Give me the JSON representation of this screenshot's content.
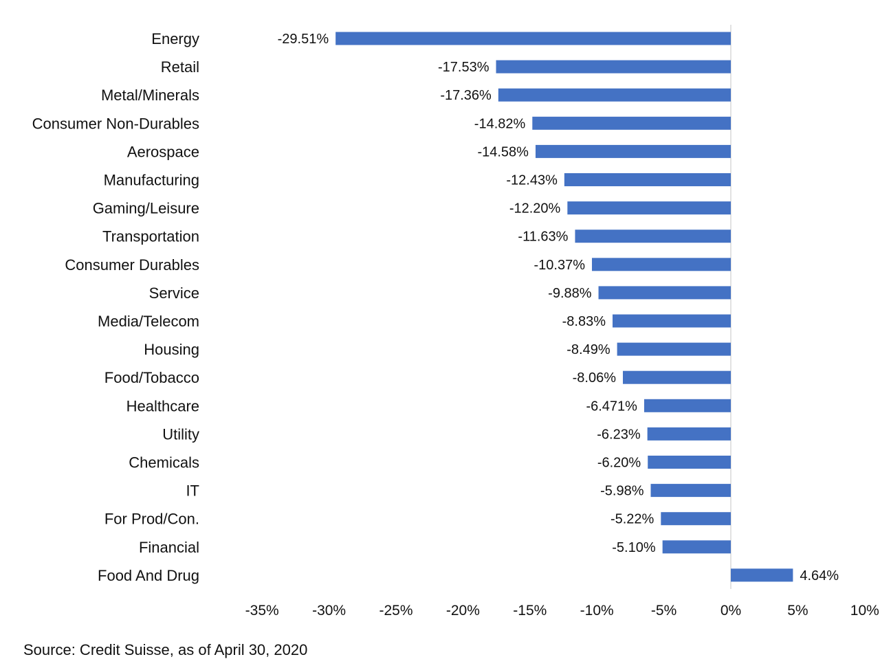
{
  "chart_data": {
    "type": "bar",
    "orientation": "horizontal",
    "categories": [
      "Energy",
      "Retail",
      "Metal/Minerals",
      "Consumer Non-Durables",
      "Aerospace",
      "Manufacturing",
      "Gaming/Leisure",
      "Transportation",
      "Consumer Durables",
      "Service",
      "Media/Telecom",
      "Housing",
      "Food/Tobacco",
      "Healthcare",
      "Utility",
      "Chemicals",
      "IT",
      "For Prod/Con.",
      "Financial",
      "Food And Drug"
    ],
    "values": [
      -29.51,
      -17.53,
      -17.36,
      -14.82,
      -14.58,
      -12.43,
      -12.2,
      -11.63,
      -10.37,
      -9.88,
      -8.83,
      -8.49,
      -8.06,
      -6.471,
      -6.23,
      -6.2,
      -5.98,
      -5.22,
      -5.1,
      4.64
    ],
    "data_labels": [
      "-29.51%",
      "-17.53%",
      "-17.36%",
      "-14.82%",
      "-14.58%",
      "-12.43%",
      "-12.20%",
      "-11.63%",
      "-10.37%",
      "-9.88%",
      "-8.83%",
      "-8.49%",
      "-8.06%",
      "-6.471%",
      "-6.23%",
      "-6.20%",
      "-5.98%",
      "-5.22%",
      "-5.10%",
      "4.64%"
    ],
    "xlim": [
      -35,
      10
    ],
    "xticks": [
      -35,
      -30,
      -25,
      -20,
      -15,
      -10,
      -5,
      0,
      5,
      10
    ],
    "xtick_labels": [
      "-35%",
      "-30%",
      "-25%",
      "-20%",
      "-15%",
      "-10%",
      "-5%",
      "0%",
      "5%",
      "10%"
    ],
    "bar_color": "#4472C4",
    "grid": false,
    "legend": "none",
    "title": "",
    "xlabel": "",
    "ylabel": ""
  },
  "source_note": "Source: Credit Suisse, as of April 30, 2020"
}
